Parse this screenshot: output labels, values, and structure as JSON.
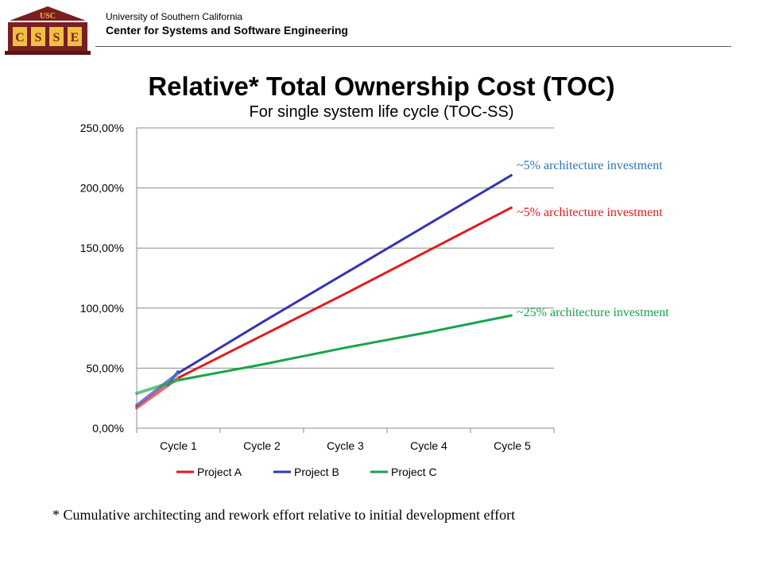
{
  "header": {
    "logo_top": "USC",
    "logo_letters": [
      "C",
      "S",
      "S",
      "E"
    ],
    "university": "University of Southern California",
    "center": "Center for Systems and Software Engineering"
  },
  "slide": {
    "title": "Relative* Total Ownership Cost (TOC)",
    "footnote": "* Cumulative architecting and rework effort relative to initial development effort"
  },
  "colors": {
    "project_a": "#e41a1c",
    "project_b": "#3535b0",
    "project_c": "#17a34a",
    "annot_blue": "#2e75b6",
    "annot_red": "#e41a1c",
    "annot_green": "#17a34a"
  },
  "chart_data": {
    "type": "line",
    "title": "",
    "subtitle": "For single system life cycle (TOC-SS)",
    "categories": [
      "Cycle 1",
      "Cycle 2",
      "Cycle 3",
      "Cycle 4",
      "Cycle 5"
    ],
    "ylim": [
      0,
      250
    ],
    "yticks": [
      "0,00%",
      "50,00%",
      "100,00%",
      "150,00%",
      "200,00%",
      "250,00%"
    ],
    "grid": true,
    "legend": "bottom",
    "series": [
      {
        "name": "Project A",
        "color_key": "project_a",
        "start": 17,
        "values": [
          42,
          77,
          112,
          148,
          184
        ]
      },
      {
        "name": "Project B",
        "color_key": "project_b",
        "start": 19,
        "spur": 48,
        "values": [
          46,
          88,
          129,
          170,
          211
        ]
      },
      {
        "name": "Project C",
        "color_key": "project_c",
        "start": 29,
        "values": [
          40,
          53,
          67,
          80,
          94
        ]
      }
    ],
    "annotations": [
      {
        "text": "~5% architecture investment",
        "color_key": "annot_blue"
      },
      {
        "text": "~5% architecture investment",
        "color_key": "annot_red"
      },
      {
        "text": "~25% architecture investment",
        "color_key": "annot_green"
      }
    ]
  }
}
